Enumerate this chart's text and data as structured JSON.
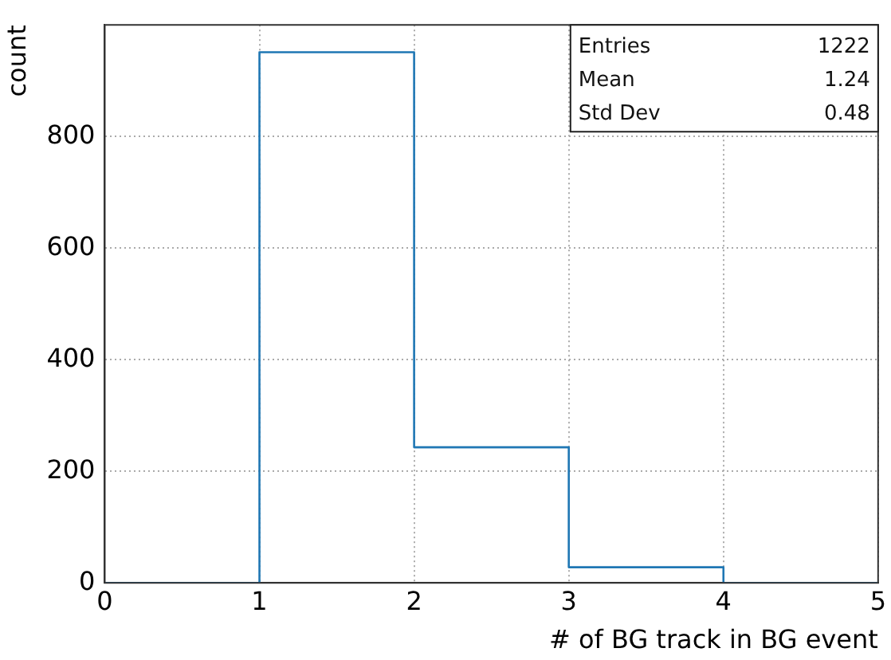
{
  "chart_data": {
    "type": "histogram",
    "xlabel": "# of BG track in BG event",
    "ylabel": "count",
    "bins": [
      0,
      1,
      2,
      3,
      4,
      5
    ],
    "values": [
      0,
      951,
      243,
      28,
      0
    ],
    "color": "#1f77b4",
    "xlim": [
      0,
      5
    ],
    "xticks": [
      0,
      1,
      2,
      3,
      4,
      5
    ],
    "ylim": [
      0,
      1000
    ],
    "yticks": [
      0,
      200,
      400,
      600,
      800
    ],
    "grid": true,
    "annotations": [
      "Entries",
      "1222",
      "Mean",
      "1.24",
      "Std Dev",
      "0.48"
    ]
  }
}
